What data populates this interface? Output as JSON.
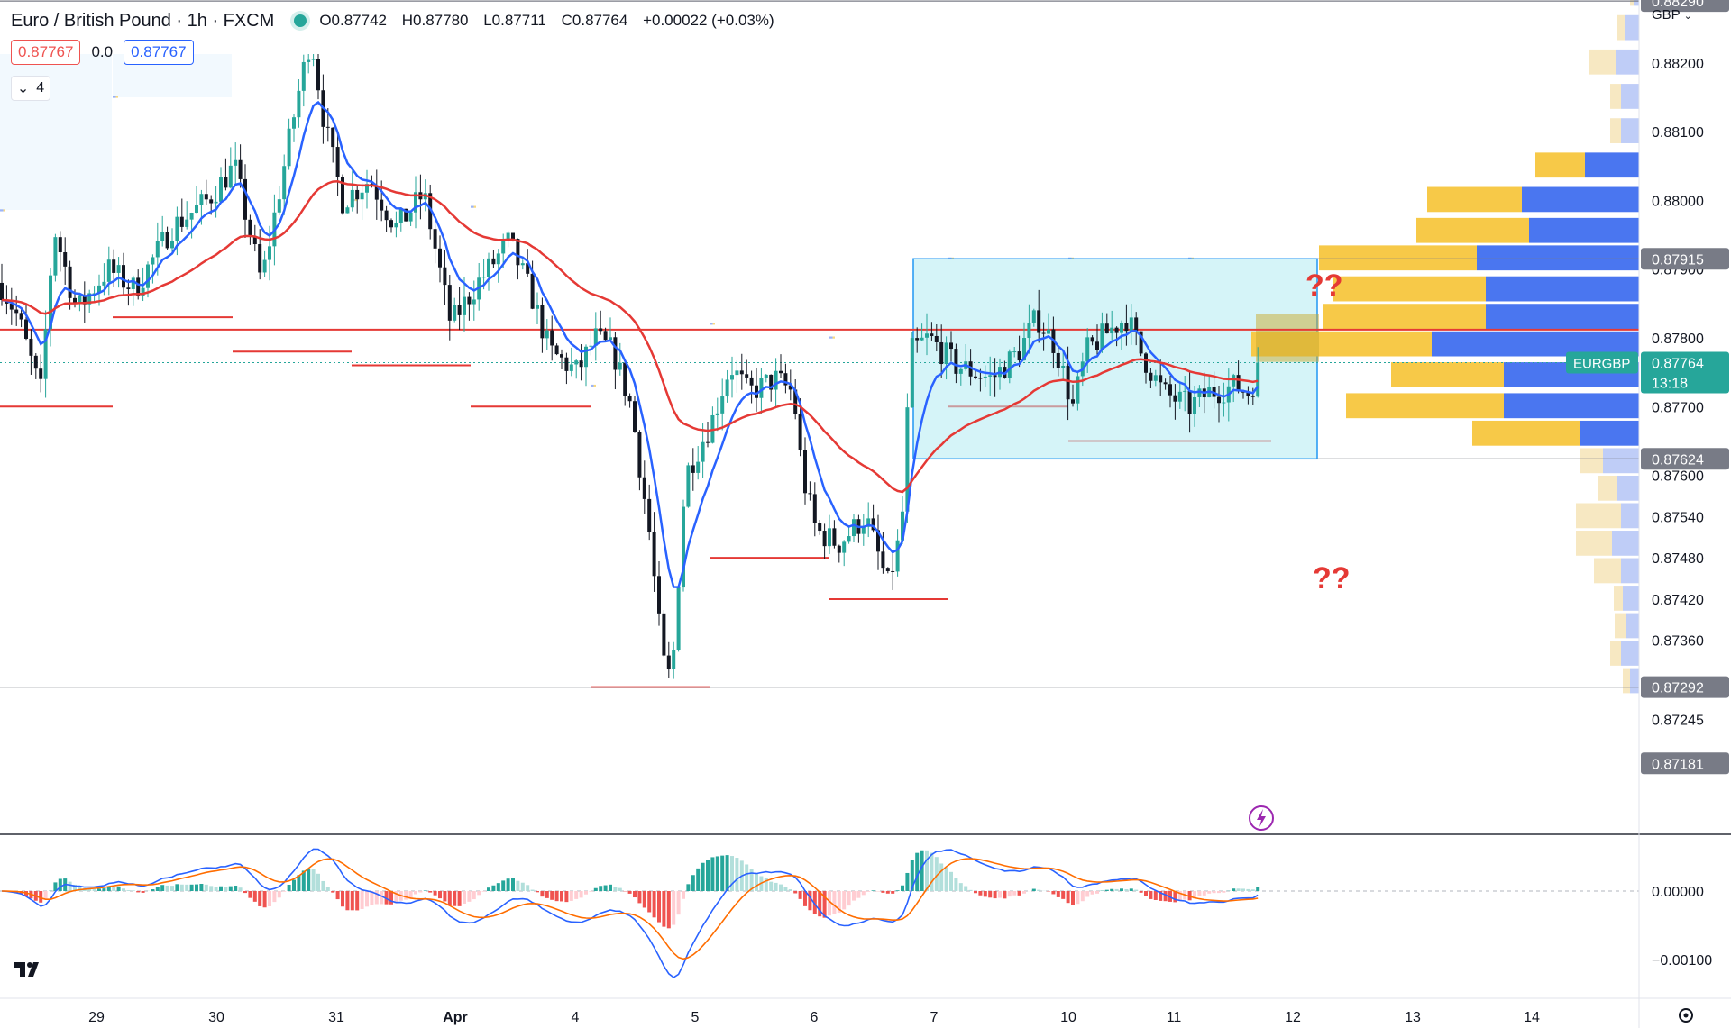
{
  "header": {
    "title": "Euro / British Pound · 1h · FXCM",
    "open": "O0.87742",
    "high": "H0.87780",
    "low": "L0.87711",
    "close": "C0.87764",
    "change": "+0.00022 (+0.03%)",
    "sell_price": "0.87767",
    "spread": "0.0",
    "buy_price": "0.87767",
    "indicators_collapsed_count": "4",
    "currency": "GBP"
  },
  "colors": {
    "up": "#26a69a",
    "down": "#131722",
    "ema_fast": "#2962ff",
    "ema_slow": "#e53935",
    "poc": "#e53935",
    "box_fill": "#b2ebf2",
    "box_border": "#2196f3",
    "vp_up": "#f7c948",
    "vp_down": "#4a76f0",
    "annot": "#e53935"
  },
  "chart_data": {
    "type": "candlestick",
    "symbol": "EURGBP",
    "timeframe": "1h",
    "xaxis": {
      "ticks": [
        "29",
        "30",
        "31",
        "Apr",
        "4",
        "5",
        "6",
        "7",
        "10",
        "11",
        "12",
        "13",
        "14"
      ]
    },
    "yaxis": {
      "range": [
        0.87181,
        0.8833
      ],
      "ticks": [
        "0.88200",
        "0.88100",
        "0.88000",
        "0.87900",
        "0.87800",
        "0.87700",
        "0.87600",
        "0.87540",
        "0.87480",
        "0.87420",
        "0.87360",
        "0.87245"
      ],
      "levels": [
        {
          "label": "0.88290",
          "value": 0.8829
        },
        {
          "label": "0.87915",
          "value": 0.87915
        },
        {
          "label": "0.87624",
          "value": 0.87624
        },
        {
          "label": "0.87292",
          "value": 0.87292
        },
        {
          "label": "0.87181",
          "value": 0.87181
        }
      ],
      "current": {
        "symbol": "EURGBP",
        "price": "0.87764",
        "countdown": "13:18",
        "value": 0.87764
      }
    },
    "macd": {
      "ticks": [
        "0.00000",
        "−0.00100"
      ],
      "range": [
        -0.0013,
        0.0007
      ]
    },
    "annotations": [
      "??",
      "??"
    ],
    "range_box": {
      "top": 0.87915,
      "bottom": 0.87624,
      "start": "Apr 6 22:00",
      "end": "Apr 11 23:00"
    },
    "poc_line": 0.87812
  }
}
